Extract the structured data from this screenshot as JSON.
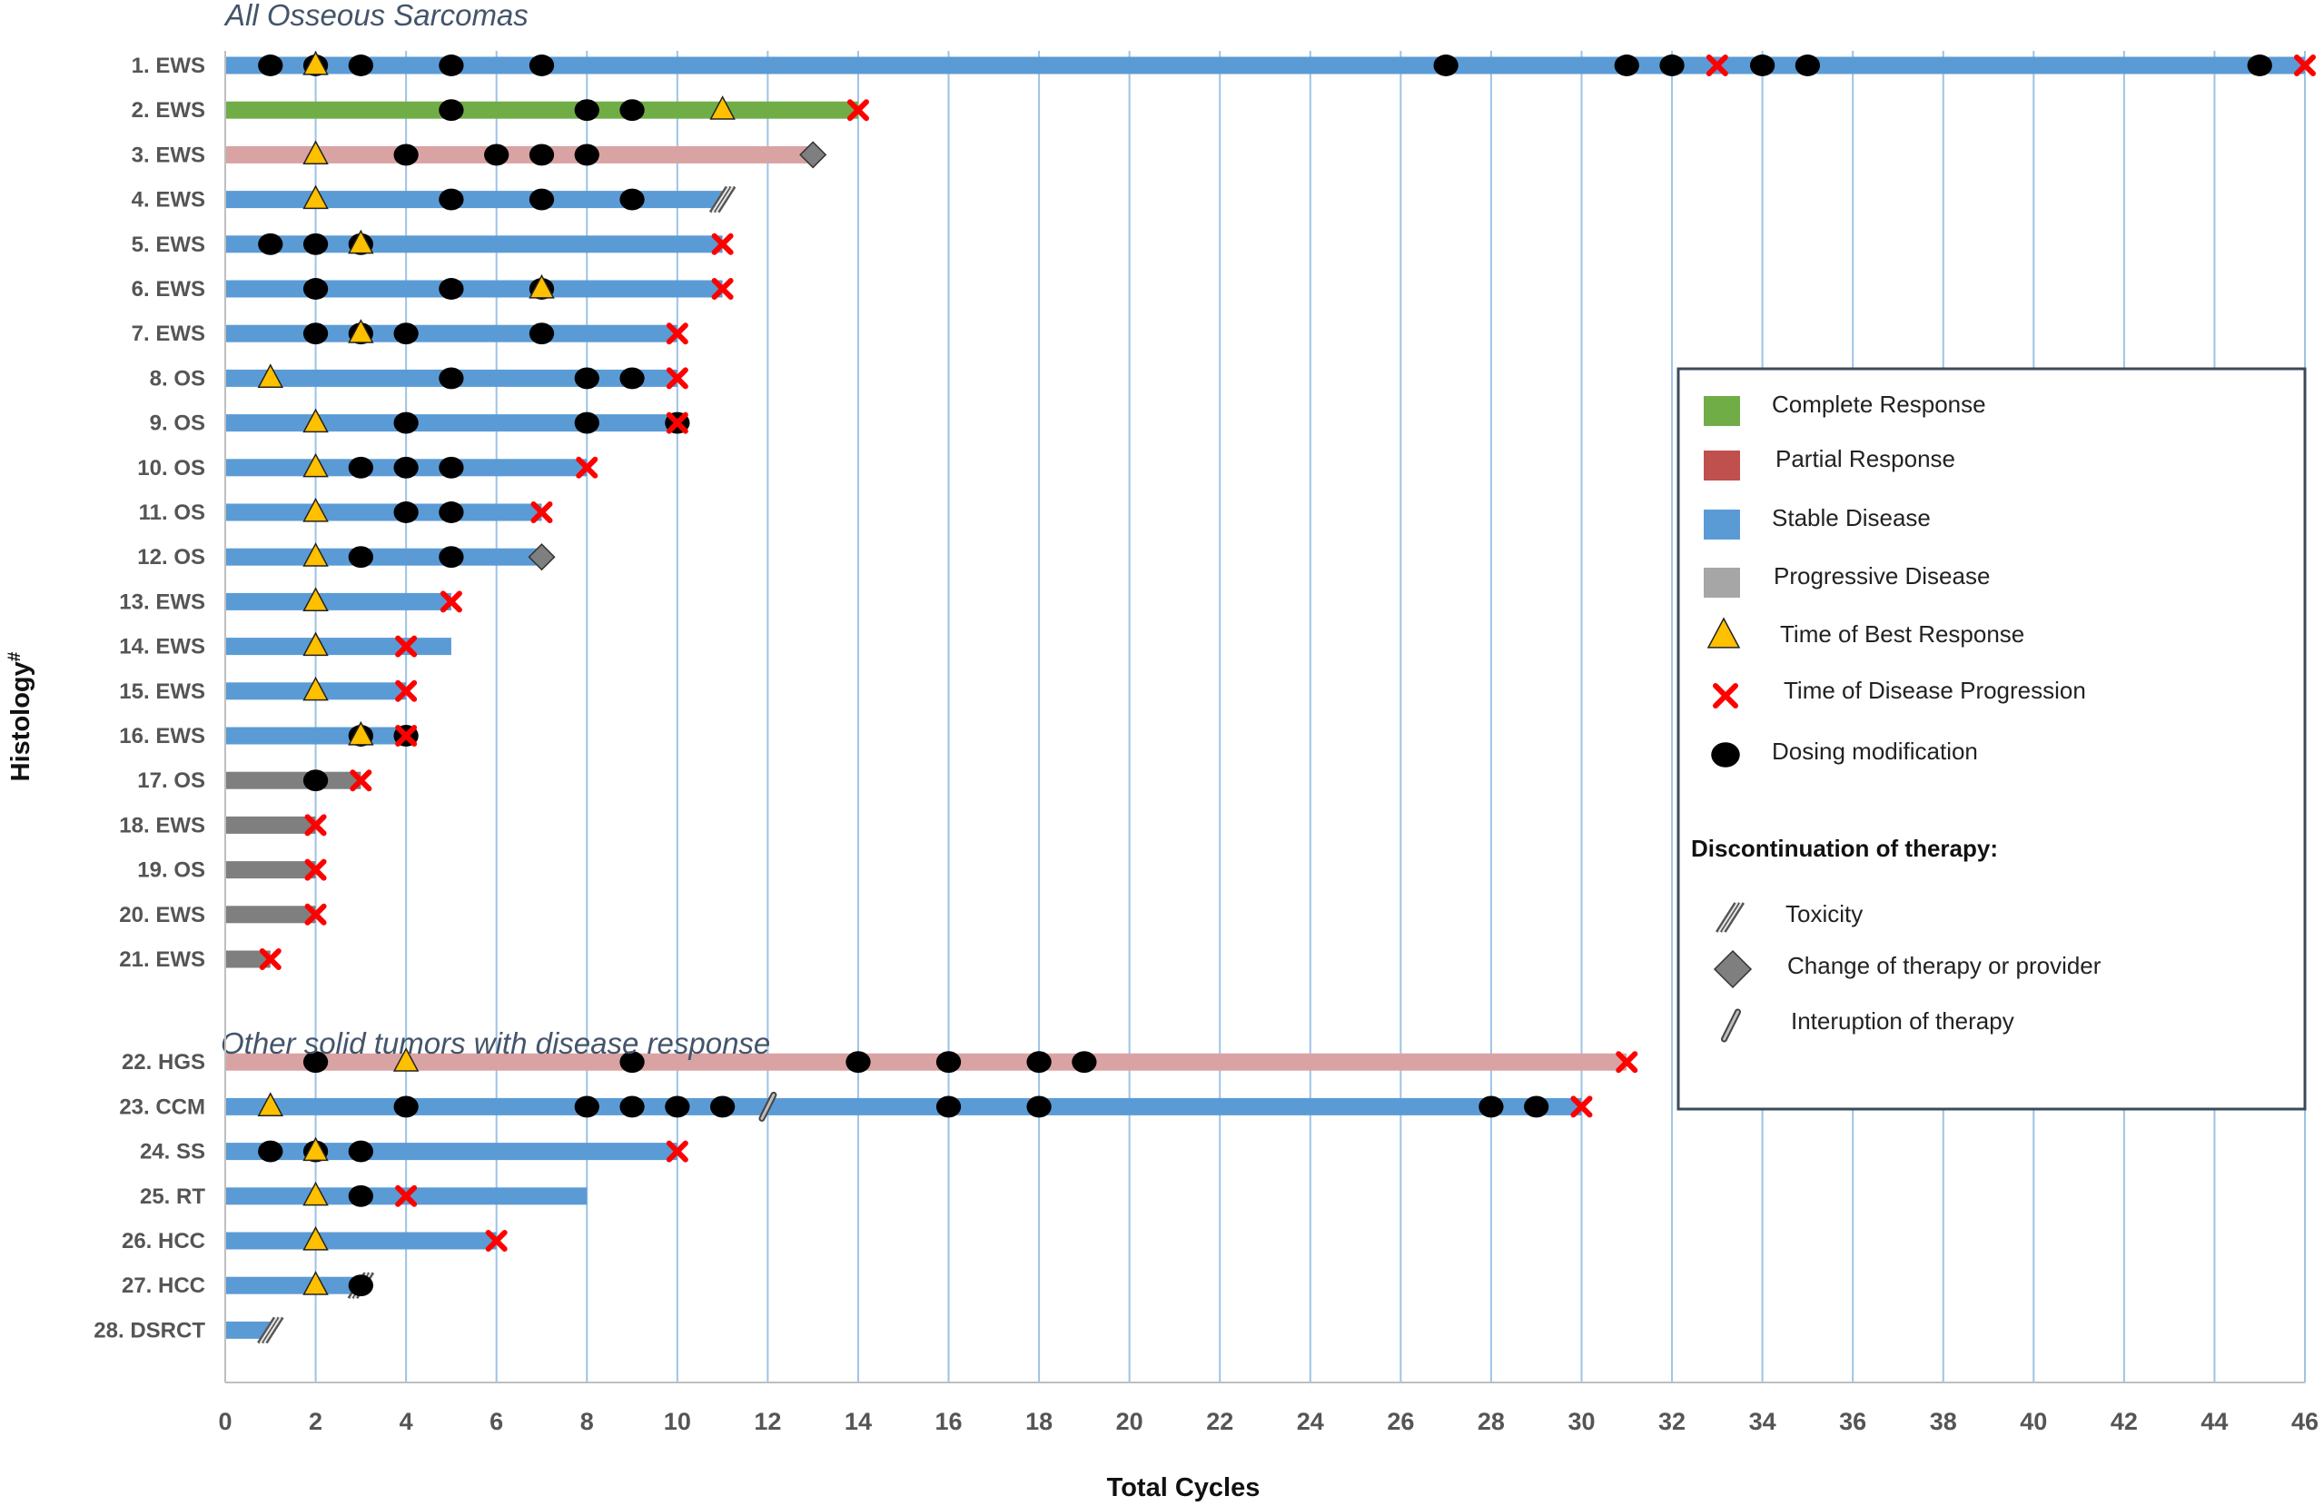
{
  "chart_data": {
    "type": "bar",
    "orientation": "horizontal",
    "subtype": "swimmer-plot",
    "xlabel": "Total Cycles",
    "ylabel": "Histology",
    "ylabel_superscript": "#",
    "xlim": [
      0,
      46
    ],
    "x_ticks": [
      0,
      2,
      4,
      6,
      8,
      10,
      12,
      14,
      16,
      18,
      20,
      22,
      24,
      26,
      28,
      30,
      32,
      34,
      36,
      38,
      40,
      42,
      44,
      46
    ],
    "grid": "vertical",
    "sections": [
      {
        "title": "All Osseous Sarcomas",
        "first_row": 0
      },
      {
        "title": "Other solid tumors with disease response",
        "first_row": 21
      }
    ],
    "response_colors": {
      "Complete Response": "#70ad47",
      "Partial Response": "#d9a3a3",
      "Stable Disease": "#5b9bd5",
      "Progressive Disease": "#7f7f7f"
    },
    "rows": [
      {
        "label": "1. EWS",
        "length": 46,
        "response": "Stable Disease",
        "best": [
          2
        ],
        "progression": [
          33,
          46
        ],
        "dosing": [
          1,
          2,
          3,
          5,
          7,
          27,
          31,
          32,
          34,
          35,
          45
        ],
        "discontinuation": null
      },
      {
        "label": "2. EWS",
        "length": 14,
        "response": "Complete Response",
        "best": [
          11
        ],
        "progression": [
          14
        ],
        "dosing": [
          5,
          8,
          9
        ],
        "discontinuation": null
      },
      {
        "label": "3. EWS",
        "length": 13,
        "response": "Partial Response",
        "best": [
          2
        ],
        "progression": [],
        "dosing": [
          4,
          6,
          7,
          8
        ],
        "discontinuation": {
          "type": "change",
          "at": 13
        }
      },
      {
        "label": "4. EWS",
        "length": 11,
        "response": "Stable Disease",
        "best": [
          2
        ],
        "progression": [],
        "dosing": [
          5,
          7,
          9
        ],
        "discontinuation": {
          "type": "toxicity",
          "at": 11
        }
      },
      {
        "label": "5. EWS",
        "length": 11,
        "response": "Stable Disease",
        "best": [
          3
        ],
        "progression": [
          11
        ],
        "dosing": [
          1,
          2,
          3
        ],
        "discontinuation": null
      },
      {
        "label": "6. EWS",
        "length": 11,
        "response": "Stable Disease",
        "best": [
          7
        ],
        "progression": [
          11
        ],
        "dosing": [
          2,
          5,
          7
        ],
        "discontinuation": null
      },
      {
        "label": "7. EWS",
        "length": 10,
        "response": "Stable Disease",
        "best": [
          3
        ],
        "progression": [
          10
        ],
        "dosing": [
          2,
          3,
          4,
          7
        ],
        "discontinuation": null
      },
      {
        "label": "8. OS",
        "length": 10,
        "response": "Stable Disease",
        "best": [
          1
        ],
        "progression": [
          10
        ],
        "dosing": [
          5,
          8,
          9
        ],
        "discontinuation": null
      },
      {
        "label": "9. OS",
        "length": 10,
        "response": "Stable Disease",
        "best": [
          2
        ],
        "progression": [
          10
        ],
        "dosing": [
          4,
          8,
          10
        ],
        "discontinuation": null
      },
      {
        "label": "10. OS",
        "length": 8,
        "response": "Stable Disease",
        "best": [
          2
        ],
        "progression": [
          8
        ],
        "dosing": [
          3,
          4,
          5
        ],
        "discontinuation": null
      },
      {
        "label": "11. OS",
        "length": 7,
        "response": "Stable Disease",
        "best": [
          2
        ],
        "progression": [
          7
        ],
        "dosing": [
          4,
          5
        ],
        "discontinuation": null
      },
      {
        "label": "12. OS",
        "length": 7,
        "response": "Stable Disease",
        "best": [
          2
        ],
        "progression": [],
        "dosing": [
          3,
          5
        ],
        "discontinuation": {
          "type": "change",
          "at": 7
        }
      },
      {
        "label": "13. EWS",
        "length": 5,
        "response": "Stable Disease",
        "best": [
          2
        ],
        "progression": [
          5
        ],
        "dosing": [],
        "discontinuation": null
      },
      {
        "label": "14. EWS",
        "length": 5,
        "response": "Stable Disease",
        "best": [
          2
        ],
        "progression": [
          4
        ],
        "dosing": [],
        "discontinuation": null
      },
      {
        "label": "15. EWS",
        "length": 4,
        "response": "Stable Disease",
        "best": [
          2
        ],
        "progression": [
          4
        ],
        "dosing": [],
        "discontinuation": null
      },
      {
        "label": "16. EWS",
        "length": 4,
        "response": "Stable Disease",
        "best": [
          3
        ],
        "progression": [
          4
        ],
        "dosing": [
          3,
          4
        ],
        "discontinuation": null
      },
      {
        "label": "17. OS",
        "length": 3,
        "response": "Progressive Disease",
        "best": [],
        "progression": [
          3
        ],
        "dosing": [
          2
        ],
        "discontinuation": null
      },
      {
        "label": "18. EWS",
        "length": 2,
        "response": "Progressive Disease",
        "best": [],
        "progression": [
          2
        ],
        "dosing": [],
        "discontinuation": null
      },
      {
        "label": "19. OS",
        "length": 2,
        "response": "Progressive Disease",
        "best": [],
        "progression": [
          2
        ],
        "dosing": [],
        "discontinuation": null
      },
      {
        "label": "20. EWS",
        "length": 2,
        "response": "Progressive Disease",
        "best": [],
        "progression": [
          2
        ],
        "dosing": [],
        "discontinuation": null
      },
      {
        "label": "21. EWS",
        "length": 1,
        "response": "Progressive Disease",
        "best": [],
        "progression": [
          1
        ],
        "dosing": [],
        "discontinuation": null
      },
      {
        "label": "22. HGS",
        "length": 31,
        "response": "Partial Response",
        "best": [
          4
        ],
        "progression": [
          31
        ],
        "dosing": [
          2,
          9,
          14,
          16,
          18,
          19
        ],
        "discontinuation": null
      },
      {
        "label": "23. CCM",
        "length": 30,
        "response": "Stable Disease",
        "best": [
          1
        ],
        "progression": [
          30
        ],
        "dosing": [
          4,
          8,
          9,
          10,
          11,
          16,
          18,
          28,
          29
        ],
        "discontinuation": {
          "type": "interruption",
          "at": 12
        }
      },
      {
        "label": "24. SS",
        "length": 10,
        "response": "Stable Disease",
        "best": [
          2
        ],
        "progression": [
          10
        ],
        "dosing": [
          1,
          2,
          3
        ],
        "discontinuation": null
      },
      {
        "label": "25. RT",
        "length": 8,
        "response": "Stable Disease",
        "best": [
          2
        ],
        "progression": [
          4
        ],
        "dosing": [
          3
        ],
        "discontinuation": null
      },
      {
        "label": "26. HCC",
        "length": 6,
        "response": "Stable Disease",
        "best": [
          2
        ],
        "progression": [
          6
        ],
        "dosing": [],
        "discontinuation": null
      },
      {
        "label": "27. HCC",
        "length": 3,
        "response": "Stable Disease",
        "best": [
          2
        ],
        "progression": [],
        "dosing": [
          3
        ],
        "discontinuation": {
          "type": "toxicity",
          "at": 3
        }
      },
      {
        "label": "28. DSRCT",
        "length": 1,
        "response": "Stable Disease",
        "best": [],
        "progression": [],
        "dosing": [],
        "discontinuation": {
          "type": "toxicity",
          "at": 1
        }
      }
    ],
    "legend": {
      "position": "right",
      "items": [
        {
          "label": "Complete Response",
          "symbol": "square",
          "color": "#70ad47"
        },
        {
          "label": "Partial Response",
          "symbol": "square",
          "color": "#c0504d"
        },
        {
          "label": "Stable Disease",
          "symbol": "square",
          "color": "#5b9bd5"
        },
        {
          "label": "Progressive Disease",
          "symbol": "square",
          "color": "#a6a6a6"
        },
        {
          "label": "Time of Best Response",
          "symbol": "triangle",
          "color": "#ffc000"
        },
        {
          "label": "Time of Disease Progression",
          "symbol": "cross",
          "color": "#ff0000"
        },
        {
          "label": "Dosing modification",
          "symbol": "circle",
          "color": "#000000"
        }
      ],
      "discontinuation_title": "Discontinuation of therapy:",
      "discontinuation_items": [
        {
          "label": "Toxicity",
          "symbol": "toxicity"
        },
        {
          "label": "Change of therapy or provider",
          "symbol": "change"
        },
        {
          "label": "Interuption of therapy",
          "symbol": "interruption"
        }
      ]
    }
  }
}
